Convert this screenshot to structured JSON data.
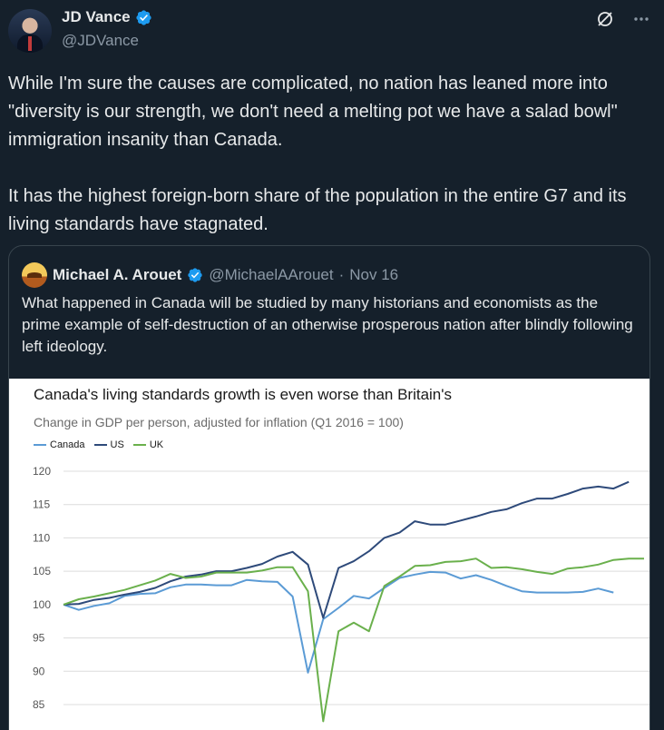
{
  "author": {
    "display_name": "JD Vance",
    "handle": "@JDVance"
  },
  "icons": {
    "verified": "verified-badge-icon",
    "grok": "grok-icon",
    "more": "more-icon"
  },
  "tweet": {
    "text": "While I'm sure the causes are complicated, no nation has leaned more into \"diversity is our strength, we don't need a melting pot we have a salad bowl\" immigration insanity than Canada.\n\nIt has the highest foreign-born share of the population in the entire G7 and its living standards have stagnated."
  },
  "quote": {
    "display_name": "Michael A. Arouet",
    "handle": "@MichaelAArouet",
    "separator": "·",
    "date": "Nov 16",
    "text": "What happened in Canada will be studied by many historians and economists as the prime example of self-destruction of an otherwise prosperous nation after blindly following left ideology."
  },
  "colors": {
    "background": "#15202b",
    "verified": "#1d9bf0",
    "canada": "#5b9bd5",
    "us": "#2e4a7a",
    "uk": "#6ab04c"
  },
  "chart_data": {
    "type": "line",
    "title": "Canada's living standards growth is even worse than Britain's",
    "subtitle": "Change in GDP per person, adjusted for inflation (Q1 2016 = 100)",
    "ylim": [
      80,
      120
    ],
    "y_ticks": [
      120,
      115,
      110,
      105,
      100,
      95,
      90,
      85
    ],
    "grid": true,
    "legend_position": "top-left",
    "series": [
      {
        "name": "Canada",
        "color": "#5b9bd5",
        "values": [
          100,
          99.2,
          99.8,
          100.2,
          101.3,
          101.6,
          101.7,
          102.6,
          103.0,
          103.0,
          102.9,
          102.9,
          103.7,
          103.5,
          103.4,
          101.2,
          89.8,
          97.8,
          99.5,
          101.3,
          100.9,
          102.5,
          104.0,
          104.5,
          104.9,
          104.8,
          103.9,
          104.4,
          103.7,
          102.8,
          102.0,
          101.8,
          101.8,
          101.8,
          101.9,
          102.4,
          101.8
        ]
      },
      {
        "name": "US",
        "color": "#2e4a7a",
        "values": [
          100,
          100.1,
          100.7,
          101.0,
          101.5,
          101.9,
          102.5,
          103.5,
          104.2,
          104.5,
          105.0,
          105.0,
          105.5,
          106.1,
          107.2,
          107.9,
          106.0,
          98.0,
          105.5,
          106.5,
          108.0,
          110.0,
          110.8,
          112.5,
          112.0,
          112.0,
          112.6,
          113.2,
          113.9,
          114.3,
          115.2,
          115.9,
          115.9,
          116.6,
          117.4,
          117.7,
          117.4,
          118.4
        ]
      },
      {
        "name": "UK",
        "color": "#6ab04c",
        "values": [
          100,
          100.8,
          101.2,
          101.7,
          102.2,
          102.9,
          103.6,
          104.6,
          104.0,
          104.2,
          104.8,
          104.8,
          104.8,
          105.1,
          105.6,
          105.6,
          102.0,
          82.5,
          96.0,
          97.3,
          96.0,
          102.8,
          104.2,
          105.8,
          105.9,
          106.4,
          106.5,
          106.9,
          105.5,
          105.6,
          105.3,
          104.9,
          104.6,
          105.4,
          105.6,
          106.0,
          106.7,
          106.9,
          106.9
        ]
      }
    ]
  }
}
